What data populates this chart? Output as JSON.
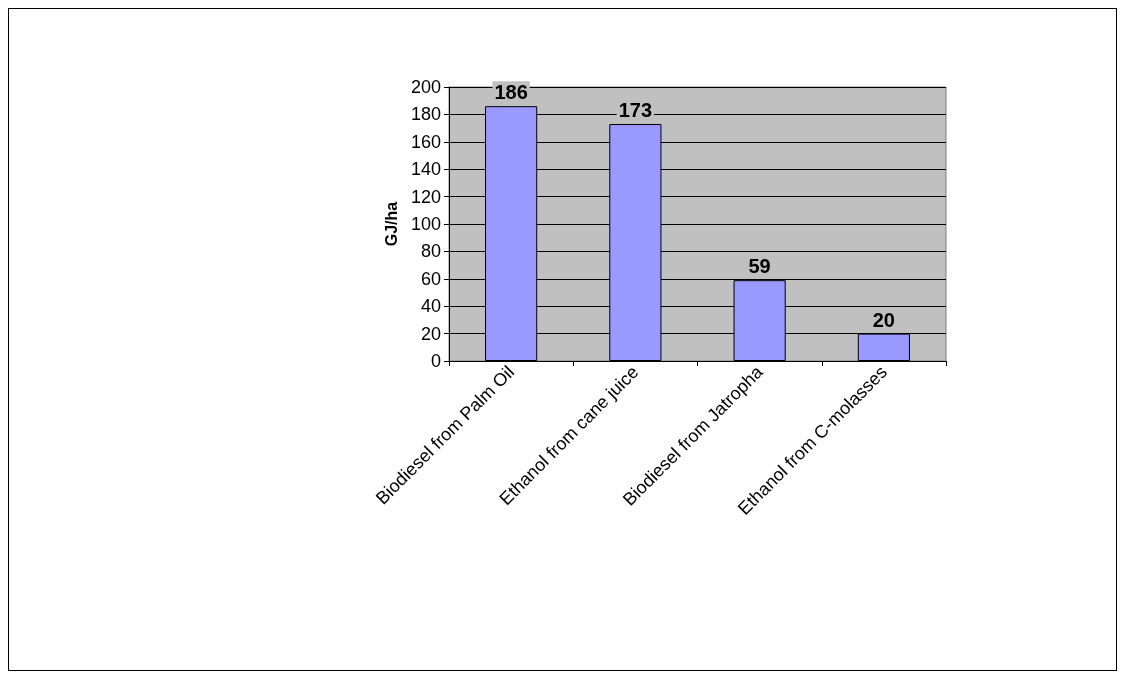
{
  "chart_data": {
    "type": "bar",
    "ylabel": "GJ/ha",
    "categories": [
      "Biodiesel from Palm Oil",
      "Ethanol from cane juice",
      "Biodiesel from Jatropha",
      "Ethanol from C-molasses"
    ],
    "values": [
      186,
      173,
      59,
      20
    ],
    "color": "#9999ff",
    "ylim": [
      0,
      200
    ],
    "yticks": [
      0,
      20,
      40,
      60,
      80,
      100,
      120,
      140,
      160,
      180,
      200
    ],
    "grid": "y",
    "data_labels": true
  }
}
